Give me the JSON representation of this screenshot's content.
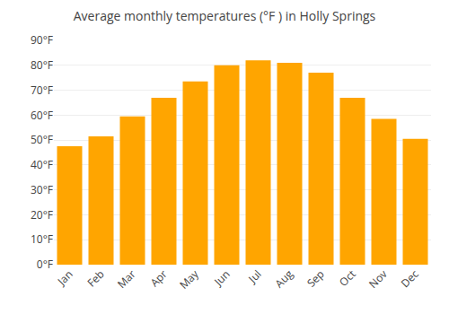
{
  "chart_data": {
    "type": "bar",
    "title": "Average monthly temperatures (°F ) in Holly Springs",
    "categories": [
      "Jan",
      "Feb",
      "Mar",
      "Apr",
      "May",
      "Jun",
      "Jul",
      "Aug",
      "Sep",
      "Oct",
      "Nov",
      "Dec"
    ],
    "values": [
      47.5,
      51.5,
      59.5,
      67,
      73.5,
      80,
      82,
      81,
      77,
      67,
      58.5,
      50.5
    ],
    "color": "#FFA500",
    "ylim": [
      0,
      90
    ],
    "yticks": [
      {
        "value": 0,
        "label": "0°F"
      },
      {
        "value": 10,
        "label": "10°F"
      },
      {
        "value": 20,
        "label": "20°F"
      },
      {
        "value": 30,
        "label": "30°F"
      },
      {
        "value": 40,
        "label": "40°F"
      },
      {
        "value": 50,
        "label": "50°F"
      },
      {
        "value": 60,
        "label": "60°F"
      },
      {
        "value": 70,
        "label": "70°F"
      },
      {
        "value": 80,
        "label": "80°F"
      },
      {
        "value": 90,
        "label": "90°F"
      }
    ],
    "grid": true
  }
}
